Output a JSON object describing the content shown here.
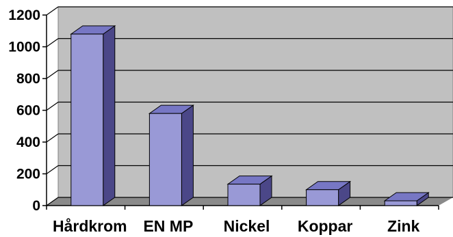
{
  "chart_data": {
    "type": "bar",
    "categories": [
      "Hårdkrom",
      "EN MP",
      "Nickel",
      "Koppar",
      "Zink"
    ],
    "values": [
      1080,
      580,
      135,
      100,
      30
    ],
    "ylim": [
      0,
      1200
    ],
    "yticks": [
      0,
      200,
      400,
      600,
      800,
      1000,
      1200
    ],
    "grid": true,
    "style": "3d-column",
    "colors": {
      "bar_front": "#9999d6",
      "bar_top": "#7777c4",
      "bar_side": "#4b4788",
      "wall": "#c0c0c0",
      "floor": "#8a8a8a",
      "gridline": "#000000"
    }
  }
}
